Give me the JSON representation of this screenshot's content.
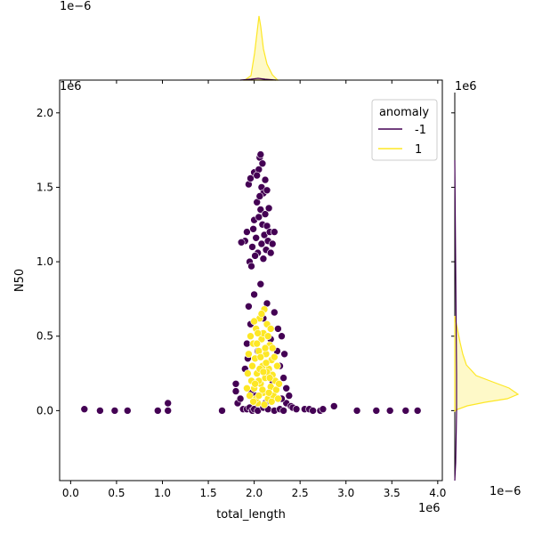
{
  "chart_data": {
    "type": "scatter",
    "xlabel": "total_length",
    "ylabel": "N50",
    "x_exponent": "1e6",
    "y_exponent": "1e6",
    "top_marginal_exponent": "1e−6",
    "right_marginal_exponent_top": "1e6",
    "right_marginal_exponent_bottom": "1e−6",
    "xlim": [
      -0.12,
      4.05
    ],
    "ylim": [
      -0.47,
      2.22
    ],
    "xticks": [
      {
        "v": 0.0,
        "label": "0.0"
      },
      {
        "v": 0.5,
        "label": "0.5"
      },
      {
        "v": 1.0,
        "label": "1.0"
      },
      {
        "v": 1.5,
        "label": "1.5"
      },
      {
        "v": 2.0,
        "label": "2.0"
      },
      {
        "v": 2.5,
        "label": "2.5"
      },
      {
        "v": 3.0,
        "label": "3.0"
      },
      {
        "v": 3.5,
        "label": "3.5"
      },
      {
        "v": 4.0,
        "label": "4.0"
      }
    ],
    "yticks": [
      {
        "v": 0.0,
        "label": "0.0"
      },
      {
        "v": 0.5,
        "label": "0.5"
      },
      {
        "v": 1.0,
        "label": "1.0"
      },
      {
        "v": 1.5,
        "label": "1.5"
      },
      {
        "v": 2.0,
        "label": "2.0"
      }
    ],
    "legend": {
      "title": "anomaly",
      "placement": "top-right",
      "entries": [
        {
          "label": "-1",
          "color": "#440154"
        },
        {
          "label": "1",
          "color": "#fde725"
        }
      ]
    },
    "series": [
      {
        "name": "-1",
        "color": "#440154",
        "points": [
          [
            0.15,
            0.01
          ],
          [
            0.32,
            0.0
          ],
          [
            0.48,
            0.0
          ],
          [
            0.62,
            0.0
          ],
          [
            0.95,
            0.0
          ],
          [
            1.06,
            0.05
          ],
          [
            1.06,
            0.0
          ],
          [
            1.65,
            0.0
          ],
          [
            1.8,
            0.18
          ],
          [
            1.8,
            0.13
          ],
          [
            1.82,
            0.05
          ],
          [
            1.85,
            0.08
          ],
          [
            1.88,
            0.01
          ],
          [
            1.92,
            0.01
          ],
          [
            1.95,
            0.02
          ],
          [
            1.98,
            0.0
          ],
          [
            2.0,
            0.01
          ],
          [
            2.04,
            0.0
          ],
          [
            2.1,
            0.02
          ],
          [
            2.15,
            0.01
          ],
          [
            2.22,
            0.0
          ],
          [
            2.28,
            0.01
          ],
          [
            2.32,
            0.0
          ],
          [
            2.35,
            0.05
          ],
          [
            2.38,
            0.1
          ],
          [
            2.4,
            0.03
          ],
          [
            2.42,
            0.02
          ],
          [
            2.46,
            0.01
          ],
          [
            2.55,
            0.01
          ],
          [
            2.6,
            0.01
          ],
          [
            2.64,
            0.0
          ],
          [
            2.72,
            0.0
          ],
          [
            2.75,
            0.01
          ],
          [
            2.87,
            0.03
          ],
          [
            3.12,
            0.0
          ],
          [
            3.33,
            0.0
          ],
          [
            3.48,
            0.0
          ],
          [
            3.65,
            0.0
          ],
          [
            3.78,
            0.0
          ],
          [
            1.94,
            0.7
          ],
          [
            1.96,
            0.58
          ],
          [
            1.92,
            0.45
          ],
          [
            2.0,
            0.78
          ],
          [
            2.07,
            0.85
          ],
          [
            2.14,
            0.72
          ],
          [
            2.22,
            0.66
          ],
          [
            2.26,
            0.55
          ],
          [
            2.3,
            0.5
          ],
          [
            2.33,
            0.38
          ],
          [
            2.28,
            0.3
          ],
          [
            2.25,
            0.4
          ],
          [
            2.32,
            0.22
          ],
          [
            2.35,
            0.15
          ],
          [
            2.3,
            0.08
          ],
          [
            1.9,
            0.28
          ],
          [
            1.93,
            0.35
          ],
          [
            1.97,
            0.12
          ],
          [
            2.02,
            0.1
          ],
          [
            2.1,
            0.62
          ],
          [
            2.18,
            0.48
          ],
          [
            2.04,
            0.4
          ],
          [
            2.2,
            0.2
          ],
          [
            2.12,
            0.05
          ],
          [
            1.9,
            1.14
          ],
          [
            1.92,
            1.2
          ],
          [
            1.94,
            1.52
          ],
          [
            1.96,
            1.56
          ],
          [
            1.98,
            1.1
          ],
          [
            1.99,
            1.22
          ],
          [
            2.0,
            1.6
          ],
          [
            2.0,
            1.28
          ],
          [
            2.02,
            1.16
          ],
          [
            2.03,
            1.4
          ],
          [
            2.04,
            1.06
          ],
          [
            2.05,
            1.3
          ],
          [
            2.05,
            1.62
          ],
          [
            2.06,
            1.7
          ],
          [
            2.07,
            1.72
          ],
          [
            2.07,
            1.35
          ],
          [
            2.08,
            1.5
          ],
          [
            2.08,
            1.12
          ],
          [
            2.09,
            1.25
          ],
          [
            2.1,
            1.46
          ],
          [
            2.1,
            1.02
          ],
          [
            2.11,
            1.18
          ],
          [
            2.12,
            1.55
          ],
          [
            2.12,
            1.32
          ],
          [
            2.13,
            1.08
          ],
          [
            2.14,
            1.24
          ],
          [
            2.15,
            1.14
          ],
          [
            2.16,
            1.36
          ],
          [
            2.17,
            1.2
          ],
          [
            2.18,
            1.06
          ],
          [
            2.2,
            1.12
          ],
          [
            2.22,
            1.2
          ],
          [
            1.95,
            1.0
          ],
          [
            1.97,
            0.97
          ],
          [
            2.01,
            1.04
          ],
          [
            2.06,
            1.44
          ],
          [
            2.09,
            1.66
          ],
          [
            2.03,
            1.58
          ],
          [
            1.86,
            1.13
          ],
          [
            2.14,
            1.48
          ]
        ]
      },
      {
        "name": "1",
        "color": "#fde725",
        "points": [
          [
            1.95,
            0.1
          ],
          [
            1.97,
            0.2
          ],
          [
            1.98,
            0.3
          ],
          [
            1.99,
            0.45
          ],
          [
            2.0,
            0.15
          ],
          [
            2.01,
            0.35
          ],
          [
            2.02,
            0.55
          ],
          [
            2.03,
            0.25
          ],
          [
            2.04,
            0.05
          ],
          [
            2.05,
            0.4
          ],
          [
            2.06,
            0.62
          ],
          [
            2.07,
            0.18
          ],
          [
            2.08,
            0.48
          ],
          [
            2.09,
            0.3
          ],
          [
            2.1,
            0.12
          ],
          [
            2.1,
            0.52
          ],
          [
            2.11,
            0.68
          ],
          [
            2.12,
            0.22
          ],
          [
            2.13,
            0.38
          ],
          [
            2.14,
            0.58
          ],
          [
            2.15,
            0.08
          ],
          [
            2.16,
            0.28
          ],
          [
            2.17,
            0.44
          ],
          [
            2.18,
            0.16
          ],
          [
            2.19,
            0.34
          ],
          [
            2.2,
            0.24
          ],
          [
            2.21,
            0.1
          ],
          [
            2.22,
            0.36
          ],
          [
            2.23,
            0.2
          ],
          [
            2.24,
            0.14
          ],
          [
            2.25,
            0.3
          ],
          [
            2.27,
            0.18
          ],
          [
            1.93,
            0.25
          ],
          [
            1.94,
            0.38
          ],
          [
            1.96,
            0.5
          ],
          [
            2.0,
            0.6
          ],
          [
            2.02,
            0.08
          ],
          [
            2.05,
            0.2
          ],
          [
            2.08,
            0.65
          ],
          [
            2.12,
            0.42
          ],
          [
            2.15,
            0.5
          ],
          [
            2.18,
            0.55
          ],
          [
            2.06,
            0.28
          ],
          [
            2.03,
            0.45
          ],
          [
            2.09,
            0.14
          ],
          [
            2.14,
            0.26
          ],
          [
            2.11,
            0.04
          ],
          [
            2.2,
            0.42
          ],
          [
            1.99,
            0.06
          ],
          [
            2.07,
            0.36
          ],
          [
            2.16,
            0.12
          ],
          [
            2.01,
            0.18
          ],
          [
            2.13,
            0.32
          ],
          [
            2.04,
            0.52
          ],
          [
            2.19,
            0.06
          ],
          [
            2.26,
            0.08
          ],
          [
            1.92,
            0.15
          ],
          [
            2.1,
            0.26
          ],
          [
            2.05,
            0.1
          ],
          [
            2.17,
            0.22
          ]
        ]
      }
    ]
  }
}
